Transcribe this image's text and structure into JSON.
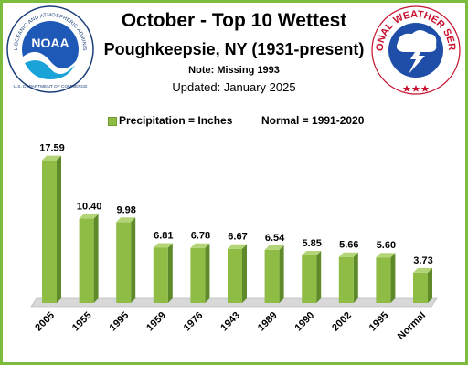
{
  "header": {
    "title": "October - Top 10 Wettest",
    "subtitle": "Poughkeepsie, NY (1931-present)",
    "note": "Note: Missing 1993",
    "updated": "Updated: January 2025"
  },
  "logos": {
    "noaa": {
      "name": "NOAA",
      "ring_text": "NATIONAL OCEANIC AND ATMOSPHERIC ADMINISTRATION",
      "bottom_text": "U.S. DEPARTMENT OF COMMERCE"
    },
    "nws": {
      "ring_text": "NATIONAL WEATHER SERVICE"
    }
  },
  "legend": {
    "series_label": "Precipitation = Inches",
    "normal_label": "Normal = 1991-2020"
  },
  "colors": {
    "bar": "#8fbc45",
    "bar_side": "#5e8a2a",
    "bar_top": "#b4d577",
    "border": "#7dbb3c",
    "floor": "#d8d8d8"
  },
  "chart_data": {
    "type": "bar",
    "categories": [
      "2005",
      "1955",
      "1995",
      "1959",
      "1976",
      "1943",
      "1989",
      "1990",
      "2002",
      "1995",
      "Normal"
    ],
    "values": [
      17.59,
      10.4,
      9.98,
      6.81,
      6.78,
      6.67,
      6.54,
      5.85,
      5.66,
      5.6,
      3.73
    ],
    "value_labels": [
      "17.59",
      "10.40",
      "9.98",
      "6.81",
      "6.78",
      "6.67",
      "6.54",
      "5.85",
      "5.66",
      "5.60",
      "3.73"
    ],
    "ylim": [
      0,
      18
    ],
    "grid": false,
    "legend_position": "top"
  }
}
